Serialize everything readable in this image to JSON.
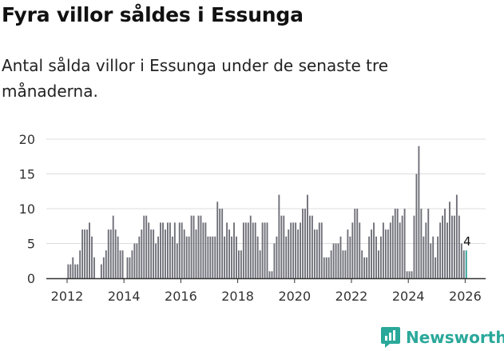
{
  "header": {
    "title": "Fyra villor såldes i Essunga",
    "subtitle": "Antal sålda villor i Essunga under de senaste tre månaderna."
  },
  "brand": {
    "name": "Newsworthy"
  },
  "colors": {
    "bar": "#6e6e78",
    "highlight": "#2a9d95",
    "grid": "#dddddd",
    "axis": "#333333",
    "brand": "#2aa89a"
  },
  "chart_data": {
    "type": "bar",
    "title": "Fyra villor såldes i Essunga",
    "subtitle": "Antal sålda villor i Essunga under de senaste tre månaderna.",
    "xlabel": "",
    "ylabel": "",
    "ylim": [
      0,
      20
    ],
    "yticks": [
      "0",
      "5",
      "10",
      "15",
      "20"
    ],
    "xticks": [
      "2012",
      "2014",
      "2016",
      "2018",
      "2020",
      "2022",
      "2024",
      "2026"
    ],
    "start": "2012-01",
    "period": "month",
    "values": [
      2,
      2,
      3,
      2,
      2,
      4,
      7,
      7,
      7,
      8,
      6,
      3,
      0,
      0,
      2,
      3,
      4,
      7,
      7,
      9,
      7,
      6,
      4,
      4,
      0,
      3,
      3,
      4,
      5,
      5,
      6,
      7,
      9,
      9,
      8,
      7,
      7,
      5,
      6,
      8,
      8,
      7,
      8,
      8,
      6,
      8,
      5,
      8,
      8,
      7,
      6,
      6,
      9,
      9,
      7,
      9,
      9,
      8,
      8,
      6,
      6,
      6,
      6,
      11,
      10,
      10,
      6,
      8,
      7,
      6,
      8,
      6,
      4,
      4,
      8,
      8,
      8,
      9,
      8,
      8,
      6,
      4,
      8,
      8,
      8,
      1,
      1,
      5,
      6,
      12,
      9,
      9,
      6,
      7,
      8,
      8,
      8,
      7,
      8,
      10,
      10,
      12,
      9,
      9,
      7,
      7,
      8,
      8,
      3,
      3,
      3,
      4,
      5,
      5,
      5,
      6,
      4,
      4,
      7,
      6,
      8,
      10,
      10,
      8,
      4,
      3,
      3,
      6,
      7,
      8,
      6,
      4,
      6,
      8,
      7,
      7,
      8,
      9,
      10,
      10,
      8,
      9,
      10,
      1,
      1,
      1,
      9,
      15,
      19,
      10,
      6,
      8,
      10,
      5,
      6,
      3,
      6,
      8,
      9,
      10,
      8,
      11,
      9,
      9,
      12,
      9,
      5,
      4,
      4
    ],
    "highlight_last": true,
    "annotation": {
      "label": "4",
      "target": "last"
    },
    "series": [
      {
        "name": "Antal sålda villor",
        "values_ref": "values"
      }
    ]
  }
}
